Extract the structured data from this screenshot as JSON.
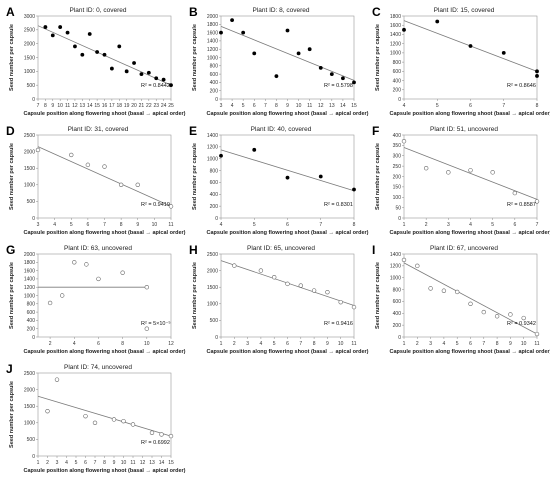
{
  "shared": {
    "xlabel": "Capsule position along flowering shoot (basal → apical order)",
    "ylabel": "Seed number per capsule"
  },
  "chart_data": [
    {
      "type": "scatter",
      "letter": "A",
      "title": "Plant ID: 0, covered",
      "marker": "filled",
      "r2": "R² = 0.8442",
      "xticks": [
        "7",
        "8",
        "9",
        "10",
        "11",
        "12",
        "13",
        "14",
        "15",
        "16",
        "17",
        "18",
        "19",
        "20",
        "21",
        "22",
        "23",
        "24",
        "25"
      ],
      "xlim": [
        7,
        25
      ],
      "ylim": [
        0,
        3000
      ],
      "yticks": [
        "0",
        "500",
        "1000",
        "1500",
        "2000",
        "2500",
        "3000"
      ],
      "points": [
        [
          8,
          2600
        ],
        [
          9,
          2300
        ],
        [
          10,
          2600
        ],
        [
          11,
          2400
        ],
        [
          12,
          1900
        ],
        [
          13,
          1600
        ],
        [
          14,
          2350
        ],
        [
          15,
          1700
        ],
        [
          16,
          1600
        ],
        [
          17,
          1100
        ],
        [
          18,
          1900
        ],
        [
          19,
          1000
        ],
        [
          20,
          1300
        ],
        [
          21,
          900
        ],
        [
          22,
          950
        ],
        [
          23,
          750
        ],
        [
          24,
          700
        ],
        [
          25,
          500
        ]
      ],
      "trend": [
        [
          7,
          2650
        ],
        [
          25,
          500
        ]
      ]
    },
    {
      "type": "scatter",
      "letter": "B",
      "title": "Plant ID: 8, covered",
      "marker": "filled",
      "r2": "R² = 0.5798",
      "xticks": [
        "3",
        "4",
        "5",
        "6",
        "7",
        "8",
        "9",
        "10",
        "11",
        "12",
        "13",
        "14",
        "15"
      ],
      "xlim": [
        3,
        15
      ],
      "ylim": [
        0,
        2000
      ],
      "yticks": [
        "0",
        "200",
        "400",
        "600",
        "800",
        "1000",
        "1200",
        "1400",
        "1600",
        "1800",
        "2000"
      ],
      "points": [
        [
          3,
          1600
        ],
        [
          4,
          1900
        ],
        [
          5,
          1600
        ],
        [
          6,
          1100
        ],
        [
          8,
          550
        ],
        [
          9,
          1650
        ],
        [
          10,
          1100
        ],
        [
          11,
          1200
        ],
        [
          12,
          750
        ],
        [
          13,
          600
        ],
        [
          14,
          500
        ],
        [
          15,
          400
        ]
      ],
      "trend": [
        [
          3,
          1750
        ],
        [
          15,
          450
        ]
      ]
    },
    {
      "type": "scatter",
      "letter": "C",
      "title": "Plant ID: 15, covered",
      "marker": "filled",
      "r2": "R² = 0.8646",
      "xticks": [
        "4",
        "5",
        "6",
        "7",
        "8"
      ],
      "xlim": [
        4,
        8
      ],
      "ylim": [
        0,
        1800
      ],
      "yticks": [
        "0",
        "200",
        "400",
        "600",
        "800",
        "1000",
        "1200",
        "1400",
        "1600",
        "1800"
      ],
      "points": [
        [
          4,
          1500
        ],
        [
          5,
          1680
        ],
        [
          6,
          1150
        ],
        [
          7,
          1000
        ],
        [
          8,
          600
        ],
        [
          8,
          500
        ]
      ],
      "trend": [
        [
          4,
          1700
        ],
        [
          8,
          600
        ]
      ]
    },
    {
      "type": "scatter",
      "letter": "D",
      "title": "Plant ID: 31, covered",
      "marker": "open",
      "r2": "R² = 0.9419",
      "xticks": [
        "3",
        "4",
        "5",
        "6",
        "7",
        "8",
        "9",
        "10",
        "11"
      ],
      "xlim": [
        3,
        11
      ],
      "ylim": [
        0,
        2500
      ],
      "yticks": [
        "0",
        "500",
        "1000",
        "1500",
        "2000",
        "2500"
      ],
      "points": [
        [
          3,
          2050
        ],
        [
          5,
          1900
        ],
        [
          6,
          1600
        ],
        [
          7,
          1550
        ],
        [
          8,
          1000
        ],
        [
          9,
          1000
        ],
        [
          11,
          350
        ]
      ],
      "trend": [
        [
          3,
          2150
        ],
        [
          11,
          350
        ]
      ]
    },
    {
      "type": "scatter",
      "letter": "E",
      "title": "Plant ID: 40, covered",
      "marker": "filled",
      "r2": "R² = 0.8301",
      "xticks": [
        "4",
        "5",
        "6",
        "7",
        "8"
      ],
      "xlim": [
        4,
        8
      ],
      "ylim": [
        0,
        1400
      ],
      "yticks": [
        "0",
        "200",
        "400",
        "600",
        "800",
        "1000",
        "1200",
        "1400"
      ],
      "points": [
        [
          4,
          1050
        ],
        [
          5,
          1150
        ],
        [
          6,
          680
        ],
        [
          7,
          700
        ],
        [
          8,
          480
        ]
      ],
      "trend": [
        [
          4,
          1150
        ],
        [
          8,
          460
        ]
      ]
    },
    {
      "type": "scatter",
      "letter": "F",
      "title": "Plant ID: 51, uncovered",
      "marker": "open",
      "r2": "R² = 0.8587",
      "xticks": [
        "1",
        "2",
        "3",
        "4",
        "5",
        "6",
        "7"
      ],
      "xlim": [
        1,
        7
      ],
      "ylim": [
        0,
        400
      ],
      "yticks": [
        "0",
        "50",
        "100",
        "150",
        "200",
        "250",
        "300",
        "350",
        "400"
      ],
      "points": [
        [
          1,
          370
        ],
        [
          2,
          240
        ],
        [
          3,
          220
        ],
        [
          4,
          230
        ],
        [
          5,
          220
        ],
        [
          6,
          120
        ],
        [
          7,
          80
        ]
      ],
      "trend": [
        [
          1,
          340
        ],
        [
          7,
          90
        ]
      ]
    },
    {
      "type": "scatter",
      "letter": "G",
      "title": "Plant ID: 63, uncovered",
      "marker": "open",
      "r2": "R² = 5×10⁻⁵",
      "xticks": [
        "2",
        "4",
        "6",
        "8",
        "10",
        "12"
      ],
      "xlim": [
        1,
        12
      ],
      "ylim": [
        0,
        2000
      ],
      "yticks": [
        "0",
        "200",
        "400",
        "600",
        "800",
        "1000",
        "1200",
        "1400",
        "1600",
        "1800",
        "2000"
      ],
      "points": [
        [
          2,
          820
        ],
        [
          3,
          1000
        ],
        [
          4,
          1800
        ],
        [
          5,
          1750
        ],
        [
          6,
          1400
        ],
        [
          8,
          1550
        ],
        [
          10,
          1200
        ],
        [
          10,
          200
        ]
      ],
      "trend": [
        [
          1,
          1200
        ],
        [
          10,
          1200
        ]
      ]
    },
    {
      "type": "scatter",
      "letter": "H",
      "title": "Plant ID: 65, uncovered",
      "marker": "open",
      "r2": "R² = 0.9416",
      "xticks": [
        "1",
        "2",
        "3",
        "4",
        "5",
        "6",
        "7",
        "8",
        "9",
        "10",
        "11"
      ],
      "xlim": [
        1,
        11
      ],
      "ylim": [
        0,
        2500
      ],
      "yticks": [
        "0",
        "500",
        "1000",
        "1500",
        "2000",
        "2500"
      ],
      "points": [
        [
          2,
          2150
        ],
        [
          4,
          2000
        ],
        [
          5,
          1800
        ],
        [
          6,
          1600
        ],
        [
          7,
          1550
        ],
        [
          8,
          1400
        ],
        [
          9,
          1350
        ],
        [
          10,
          1050
        ],
        [
          11,
          900
        ]
      ],
      "trend": [
        [
          1,
          2300
        ],
        [
          11,
          950
        ]
      ]
    },
    {
      "type": "scatter",
      "letter": "I",
      "title": "Plant ID: 67, uncovered",
      "marker": "open",
      "r2": "R² = 0.9342",
      "xticks": [
        "1",
        "2",
        "3",
        "4",
        "5",
        "6",
        "7",
        "8",
        "9",
        "10",
        "11"
      ],
      "xlim": [
        1,
        11
      ],
      "ylim": [
        0,
        1400
      ],
      "yticks": [
        "0",
        "200",
        "400",
        "600",
        "800",
        "1000",
        "1200",
        "1400"
      ],
      "points": [
        [
          1,
          1300
        ],
        [
          2,
          1200
        ],
        [
          3,
          820
        ],
        [
          4,
          780
        ],
        [
          5,
          760
        ],
        [
          6,
          560
        ],
        [
          7,
          420
        ],
        [
          8,
          350
        ],
        [
          9,
          380
        ],
        [
          10,
          320
        ],
        [
          11,
          50
        ]
      ],
      "trend": [
        [
          1,
          1250
        ],
        [
          11,
          50
        ]
      ]
    },
    {
      "type": "scatter",
      "letter": "J",
      "title": "Plant ID: 74, uncovered",
      "marker": "open",
      "r2": "R² = 0.6992",
      "xticks": [
        "1",
        "2",
        "3",
        "4",
        "5",
        "6",
        "7",
        "8",
        "9",
        "10",
        "11",
        "12",
        "13",
        "14",
        "15"
      ],
      "xlim": [
        1,
        15
      ],
      "ylim": [
        0,
        2500
      ],
      "yticks": [
        "0",
        "500",
        "1000",
        "1500",
        "2000",
        "2500"
      ],
      "points": [
        [
          2,
          1350
        ],
        [
          3,
          2300
        ],
        [
          6,
          1200
        ],
        [
          7,
          1000
        ],
        [
          9,
          1100
        ],
        [
          10,
          1050
        ],
        [
          11,
          950
        ],
        [
          13,
          700
        ],
        [
          14,
          650
        ],
        [
          15,
          600
        ]
      ],
      "trend": [
        [
          1,
          1800
        ],
        [
          15,
          600
        ]
      ]
    }
  ]
}
